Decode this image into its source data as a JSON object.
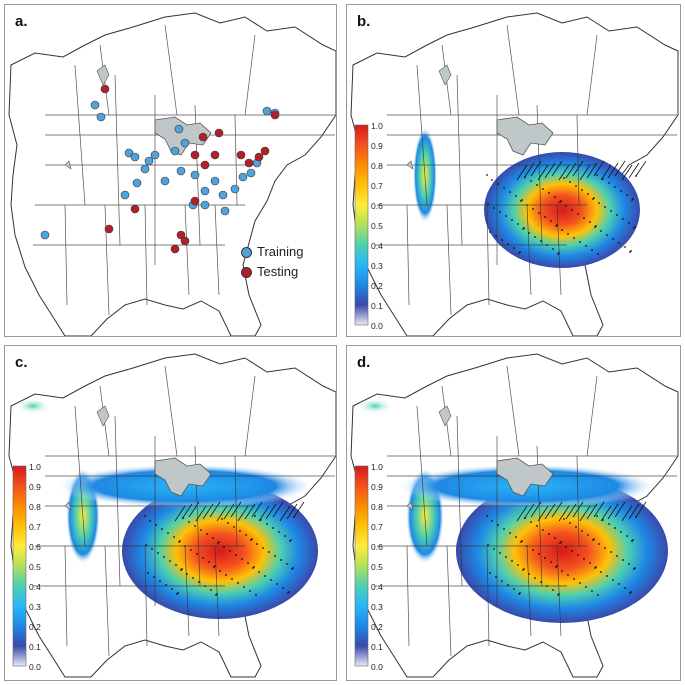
{
  "panels": [
    {
      "id": "a",
      "label": "a."
    },
    {
      "id": "b",
      "label": "b."
    },
    {
      "id": "c",
      "label": "c."
    },
    {
      "id": "d",
      "label": "d."
    }
  ],
  "legend": {
    "training": {
      "label": "Training",
      "color": "#4fa3d8"
    },
    "testing": {
      "label": "Testing",
      "color": "#b3202a"
    }
  },
  "colorbar": {
    "ticks": [
      "1.0",
      "0.9",
      "0.8",
      "0.7",
      "0.6",
      "0.5",
      "0.4",
      "0.3",
      "0.2",
      "0.1",
      "0.0"
    ],
    "colors": [
      "#d7191c",
      "#f4511e",
      "#fb8c00",
      "#ffc107",
      "#ffeb3b",
      "#b2e05a",
      "#4dd0b1",
      "#29b6f6",
      "#1e88e5",
      "#3949ab",
      "#e8eaf6"
    ]
  },
  "colors": {
    "land": "#ffffff",
    "border": "#333333",
    "lakes": "#bfc7c9"
  }
}
